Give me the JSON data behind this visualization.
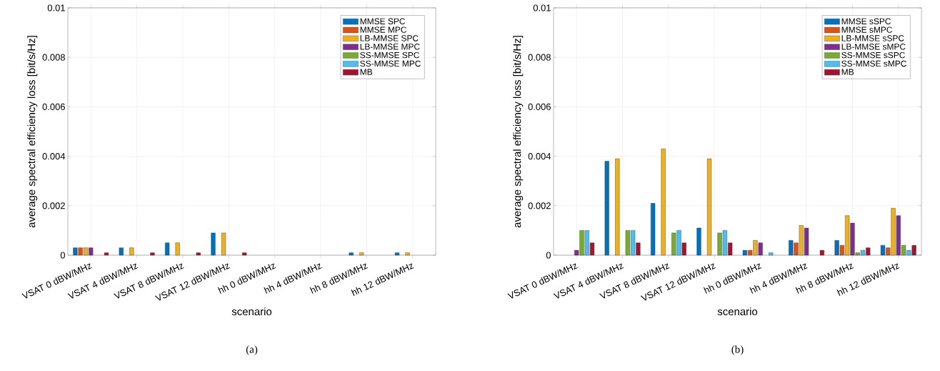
{
  "chart_data": [
    {
      "type": "bar",
      "xlabel": "scenario",
      "ylabel": "average spectral efficiency loss [bit/s/Hz]",
      "categories": [
        "VSAT 0 dBW/MHz",
        "VSAT 4 dBW/MHz",
        "VSAT 8 dBW/MHz",
        "VSAT 12 dBW/MHz",
        "hh 0 dBW/MHz",
        "hh 4 dBW/MHz",
        "hh 8 dBW/MHz",
        "hh 12 dBW/MHz"
      ],
      "ylim": [
        0,
        0.01
      ],
      "yticks": [
        0,
        0.002,
        0.004,
        0.006,
        0.008,
        0.01
      ],
      "grid": true,
      "legend": "top right",
      "annotations": [
        "(a)"
      ],
      "series": [
        {
          "name": "MMSE SPC",
          "color": "#0072bd",
          "values": [
            0.0003,
            0.0003,
            0.0005,
            0.0009,
            0,
            0,
            0.0001,
            0.0001
          ]
        },
        {
          "name": "MMSE MPC",
          "color": "#d95319",
          "values": [
            0.0003,
            0,
            0,
            0,
            0,
            0,
            0,
            0
          ]
        },
        {
          "name": "LB-MMSE SPC",
          "color": "#edb120",
          "values": [
            0.0003,
            0.0003,
            0.0005,
            0.0009,
            0,
            0,
            0.0001,
            0.0001
          ]
        },
        {
          "name": "LB-MMSE MPC",
          "color": "#7e2f8e",
          "values": [
            0.0003,
            0,
            0,
            0,
            0,
            0,
            0,
            0
          ]
        },
        {
          "name": "SS-MMSE SPC",
          "color": "#77ac30",
          "values": [
            0,
            0,
            0,
            0,
            0,
            0,
            0,
            0
          ]
        },
        {
          "name": "SS-MMSE MPC",
          "color": "#4dbeee",
          "values": [
            0,
            0,
            0,
            0,
            0,
            0,
            0,
            0
          ]
        },
        {
          "name": "MB",
          "color": "#a2142f",
          "values": [
            0.0001,
            0.0001,
            0.0001,
            0.0001,
            0,
            0,
            0,
            0
          ]
        }
      ]
    },
    {
      "type": "bar",
      "xlabel": "scenario",
      "ylabel": "average spectral efficiency loss [bit/s/Hz]",
      "categories": [
        "VSAT 0 dBW/MHz",
        "VSAT 4 dBW/MHz",
        "VSAT 8 dBW/MHz",
        "VSAT 12 dBW/MHz",
        "hh 0 dBW/MHz",
        "hh 4 dBW/MHz",
        "hh 8 dBW/MHz",
        "hh 12 dBW/MHz"
      ],
      "ylim": [
        0,
        0.01
      ],
      "yticks": [
        0,
        0.002,
        0.004,
        0.006,
        0.008,
        0.01
      ],
      "grid": true,
      "legend": "top right",
      "annotations": [
        "(b)"
      ],
      "series": [
        {
          "name": "MMSE sSPC",
          "color": "#0072bd",
          "values": [
            0,
            0.0038,
            0.0021,
            0.0011,
            0.0002,
            0.0006,
            0.0006,
            0.0004
          ]
        },
        {
          "name": "MMSE sMPC",
          "color": "#d95319",
          "values": [
            0,
            0,
            0,
            0,
            0.0002,
            0.0005,
            0.0004,
            0.0003
          ]
        },
        {
          "name": "LB-MMSE sSPC",
          "color": "#edb120",
          "values": [
            0,
            0.0039,
            0.0043,
            0.0039,
            0.0006,
            0.0012,
            0.0016,
            0.0019
          ]
        },
        {
          "name": "LB-MMSE sMPC",
          "color": "#7e2f8e",
          "values": [
            0.0002,
            0,
            0,
            0,
            0.0005,
            0.0011,
            0.0013,
            0.0016
          ]
        },
        {
          "name": "SS-MMSE sSPC",
          "color": "#77ac30",
          "values": [
            0.001,
            0.001,
            0.0009,
            0.0009,
            0,
            0,
            0.0001,
            0.0004
          ]
        },
        {
          "name": "SS-MMSE sMPC",
          "color": "#4dbeee",
          "values": [
            0.001,
            0.001,
            0.001,
            0.001,
            0.0001,
            0,
            0.0002,
            0.0002
          ]
        },
        {
          "name": "MB",
          "color": "#a2142f",
          "values": [
            0.0005,
            0.0005,
            0.0005,
            0.0005,
            0,
            0.0002,
            0.0003,
            0.0004
          ]
        }
      ]
    }
  ]
}
